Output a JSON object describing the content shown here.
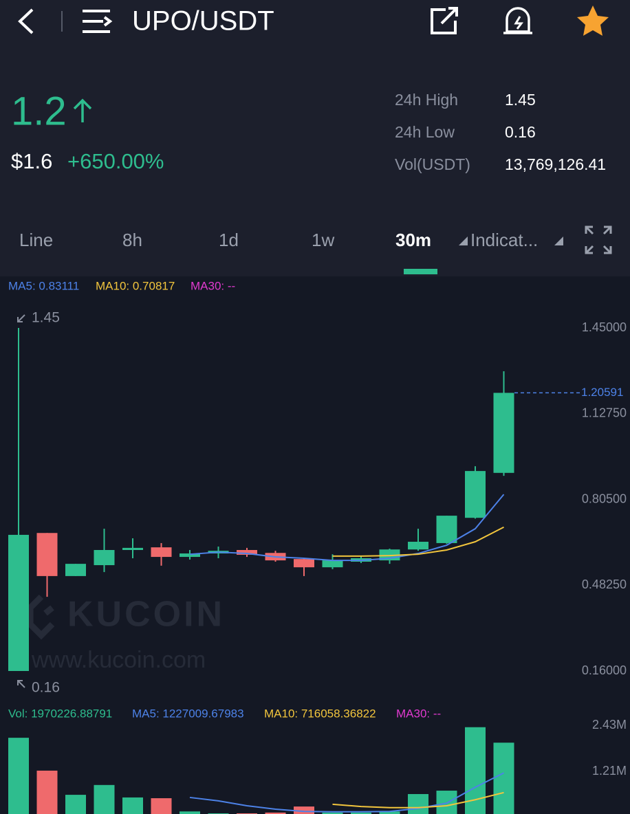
{
  "header": {
    "title": "UPO/USDT"
  },
  "price": {
    "last": "1.2",
    "usd": "$1.6",
    "change": "+650.00%"
  },
  "stats": [
    {
      "label": "24h High",
      "value": "1.45"
    },
    {
      "label": "24h Low",
      "value": "0.16"
    },
    {
      "label": "Vol(USDT)",
      "value": "13,769,126.41"
    }
  ],
  "tabs": [
    "Line",
    "8h",
    "1d",
    "1w",
    "30m",
    "Indicat..."
  ],
  "watermark": {
    "brand": "KUCOIN",
    "url": "www.kucoin.com"
  },
  "chart_data": [
    {
      "type": "candlestick",
      "open": [
        0.16,
        0.679,
        0.517,
        0.558,
        0.615,
        0.625,
        0.589,
        0.602,
        0.615,
        0.604,
        0.581,
        0.55,
        0.571,
        0.576,
        0.617,
        0.641,
        0.736,
        0.905
      ],
      "close": [
        0.672,
        0.517,
        0.563,
        0.615,
        0.623,
        0.589,
        0.602,
        0.612,
        0.597,
        0.576,
        0.55,
        0.576,
        0.584,
        0.617,
        0.646,
        0.744,
        0.912,
        1.20591
      ],
      "high": [
        1.45,
        0.679,
        0.563,
        0.695,
        0.659,
        0.641,
        0.615,
        0.628,
        0.623,
        0.612,
        0.584,
        0.599,
        0.592,
        0.62,
        0.695,
        0.744,
        0.93,
        1.287
      ],
      "low": [
        0.16,
        0.439,
        0.517,
        0.532,
        0.584,
        0.556,
        0.579,
        0.584,
        0.589,
        0.571,
        0.517,
        0.543,
        0.566,
        0.563,
        0.612,
        0.638,
        0.733,
        0.894
      ],
      "up_color": "#2ebd8e",
      "down_color": "#ef6a6c",
      "series": [
        {
          "name": "MA5: 0.83111",
          "color": "#4d82e8",
          "values": [
            null,
            null,
            null,
            null,
            null,
            null,
            0.599,
            0.607,
            0.602,
            0.589,
            0.584,
            0.576,
            0.576,
            0.584,
            0.602,
            0.633,
            0.695,
            0.824
          ]
        },
        {
          "name": "MA10: 0.70817",
          "color": "#f2c53d",
          "values": [
            null,
            null,
            null,
            null,
            null,
            null,
            null,
            null,
            null,
            null,
            null,
            0.592,
            0.592,
            0.594,
            0.599,
            0.615,
            0.646,
            0.701
          ]
        },
        {
          "name": "MA30: --",
          "color": "#e23ad0",
          "values": [
            null,
            null,
            null,
            null,
            null,
            null,
            null,
            null,
            null,
            null,
            null,
            null,
            null,
            null,
            null,
            null,
            null,
            null
          ]
        }
      ],
      "high_label": 1.45,
      "low_label": 0.16,
      "last_price": 1.20591,
      "ylim": [
        0.16,
        1.45
      ],
      "yticks": [
        {
          "value": 1.45,
          "label": "1.45000"
        },
        {
          "value": 1.1275,
          "label": "1.12750"
        },
        {
          "value": 0.805,
          "label": "0.80500"
        },
        {
          "value": 0.4825,
          "label": "0.48250"
        },
        {
          "value": 0.16,
          "label": "0.16000"
        }
      ]
    },
    {
      "type": "bar",
      "values": [
        2100000,
        1230000,
        590000,
        850000,
        520000,
        500000,
        150000,
        100000,
        100000,
        120000,
        280000,
        120000,
        120000,
        150000,
        610000,
        700000,
        2380000,
        1970226.88791
      ],
      "series": [
        {
          "name": "Vol: 1970226.88791",
          "color": "#2ebd8e"
        },
        {
          "name": "MA5: 1227009.67983",
          "color": "#4d82e8",
          "values": [
            null,
            null,
            null,
            null,
            null,
            null,
            520000,
            430000,
            300000,
            210000,
            150000,
            140000,
            140000,
            150000,
            230000,
            370000,
            790000,
            1170000
          ]
        },
        {
          "name": "MA10: 716058.36822",
          "color": "#f2c53d",
          "values": [
            null,
            null,
            null,
            null,
            null,
            null,
            null,
            null,
            null,
            null,
            null,
            340000,
            280000,
            250000,
            250000,
            300000,
            460000,
            650000
          ]
        },
        {
          "name": "MA30: --",
          "color": "#e23ad0",
          "values": [
            null,
            null,
            null,
            null,
            null,
            null,
            null,
            null,
            null,
            null,
            null,
            null,
            null,
            null,
            null,
            null,
            null,
            null
          ]
        }
      ],
      "ylim": [
        0,
        2430000
      ],
      "yticks": [
        {
          "value": 2430000,
          "label": "2.43M"
        },
        {
          "value": 1210000,
          "label": "1.21M"
        }
      ]
    }
  ]
}
